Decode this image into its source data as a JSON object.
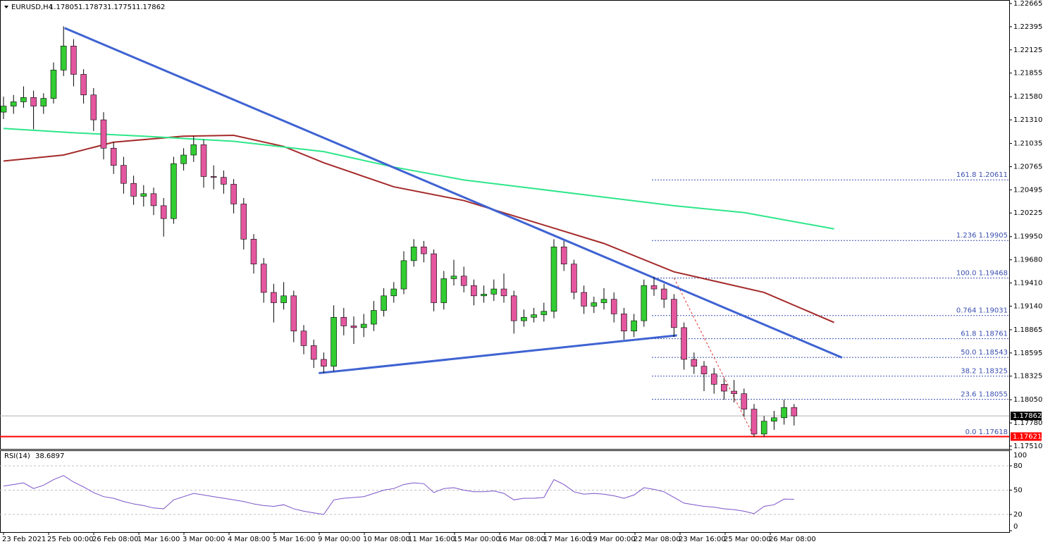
{
  "chart_data": {
    "type": "candlestick",
    "symbol": "EURUSD,H4",
    "quote": [
      1.17805,
      1.17873,
      1.17751,
      1.17862
    ],
    "bull_color": "#32cd32",
    "bear_color": "#e4579f",
    "ylim": [
      1.17477,
      1.22706
    ],
    "yticks": [
      1.22665,
      1.22395,
      1.22125,
      1.21855,
      {
        "value": 1.2158,
        "label": "1.21580"
      },
      {
        "value": 1.2131,
        "label": "1.21310"
      },
      1.21035,
      1.20765,
      1.20495,
      1.20225,
      {
        "value": 1.1995,
        "label": "1.19950"
      },
      {
        "value": 1.1968,
        "label": "1.19680"
      },
      {
        "value": 1.1941,
        "label": "1.19410"
      },
      {
        "value": 1.1914,
        "label": "1.19140"
      },
      1.18865,
      1.18595,
      1.18325,
      {
        "value": 1.1805,
        "label": "1.18050"
      },
      {
        "value": 1.1778,
        "label": "1.17780"
      },
      {
        "value": 1.1751,
        "label": "1.17510"
      }
    ],
    "xlabels": [
      "23 Feb 2021",
      "25 Feb 00:00",
      "26 Feb 08:00",
      "1 Mar 16:00",
      "3 Mar 00:00",
      "4 Mar 08:00",
      "5 Mar 16:00",
      "9 Mar 00:00",
      "10 Mar 08:00",
      "11 Mar 16:00",
      "15 Mar 00:00",
      "16 Mar 08:00",
      "17 Mar 16:00",
      "19 Mar 00:00",
      "22 Mar 08:00",
      "23 Mar 16:00",
      "25 Mar 00:00",
      "26 Mar 08:00"
    ],
    "candles": [
      [
        1.214,
        1.2158,
        1.2132,
        1.2147
      ],
      [
        1.2147,
        1.216,
        1.2138,
        1.2152
      ],
      [
        1.2152,
        1.217,
        1.2145,
        1.2157
      ],
      [
        1.2157,
        1.2165,
        1.212,
        1.2147
      ],
      [
        1.2147,
        1.2162,
        1.2138,
        1.2156
      ],
      [
        1.2156,
        1.2198,
        1.215,
        1.2189
      ],
      [
        1.2189,
        1.224,
        1.2182,
        1.2217
      ],
      [
        1.2217,
        1.2225,
        1.217,
        1.2184
      ],
      [
        1.2184,
        1.219,
        1.215,
        1.216
      ],
      [
        1.216,
        1.2168,
        1.2118,
        1.2131
      ],
      [
        1.2131,
        1.214,
        1.2085,
        1.2098
      ],
      [
        1.2098,
        1.2105,
        1.2068,
        1.2078
      ],
      [
        1.2078,
        1.2088,
        1.2045,
        1.2057
      ],
      [
        1.2057,
        1.2066,
        1.2032,
        1.2042
      ],
      [
        1.2042,
        1.2055,
        1.203,
        1.2045
      ],
      [
        1.2045,
        1.2052,
        1.202,
        1.2031
      ],
      [
        1.2031,
        1.204,
        1.1995,
        1.2016
      ],
      [
        1.2016,
        1.2088,
        1.201,
        1.208
      ],
      [
        1.208,
        1.2098,
        1.2072,
        1.209
      ],
      [
        1.209,
        1.2112,
        1.2082,
        1.2102
      ],
      [
        1.2102,
        1.2108,
        1.2052,
        1.2065
      ],
      [
        1.2065,
        1.2078,
        1.205,
        1.2064
      ],
      [
        1.2064,
        1.2072,
        1.2045,
        1.2056
      ],
      [
        1.2056,
        1.2062,
        1.2022,
        1.2033
      ],
      [
        1.2033,
        1.204,
        1.198,
        1.1992
      ],
      [
        1.1992,
        1.1998,
        1.1952,
        1.1963
      ],
      [
        1.1963,
        1.197,
        1.1918,
        1.193
      ],
      [
        1.193,
        1.194,
        1.1895,
        1.1918
      ],
      [
        1.1918,
        1.1942,
        1.191,
        1.1926
      ],
      [
        1.1926,
        1.1932,
        1.1872,
        1.1885
      ],
      [
        1.1885,
        1.1892,
        1.1858,
        1.1868
      ],
      [
        1.1868,
        1.1875,
        1.1842,
        1.1852
      ],
      [
        1.1852,
        1.186,
        1.1836,
        1.1844
      ],
      [
        1.1844,
        1.1915,
        1.1838,
        1.1901
      ],
      [
        1.1901,
        1.1912,
        1.188,
        1.1891
      ],
      [
        1.1891,
        1.1902,
        1.187,
        1.1889
      ],
      [
        1.1889,
        1.1905,
        1.1878,
        1.1893
      ],
      [
        1.1893,
        1.192,
        1.1885,
        1.1909
      ],
      [
        1.1909,
        1.1935,
        1.1902,
        1.1926
      ],
      [
        1.1926,
        1.1942,
        1.1918,
        1.1934
      ],
      [
        1.1934,
        1.1978,
        1.1928,
        1.1967
      ],
      [
        1.1967,
        1.1992,
        1.196,
        1.1983
      ],
      [
        1.1983,
        1.199,
        1.1965,
        1.1975
      ],
      [
        1.1975,
        1.198,
        1.1908,
        1.1918
      ],
      [
        1.1918,
        1.1955,
        1.191,
        1.1946
      ],
      [
        1.1946,
        1.1968,
        1.1938,
        1.1949
      ],
      [
        1.1949,
        1.196,
        1.193,
        1.1938
      ],
      [
        1.1938,
        1.1945,
        1.1915,
        1.1926
      ],
      [
        1.1926,
        1.1938,
        1.1918,
        1.1928
      ],
      [
        1.1928,
        1.1945,
        1.192,
        1.1934
      ],
      [
        1.1934,
        1.1952,
        1.1918,
        1.1926
      ],
      [
        1.1926,
        1.1932,
        1.1882,
        1.1897
      ],
      [
        1.1897,
        1.191,
        1.189,
        1.1901
      ],
      [
        1.1901,
        1.1912,
        1.1895,
        1.1904
      ],
      [
        1.1904,
        1.1918,
        1.1896,
        1.1908
      ],
      [
        1.1908,
        1.1992,
        1.19,
        1.1983
      ],
      [
        1.1983,
        1.199,
        1.1955,
        1.1963
      ],
      [
        1.1963,
        1.1968,
        1.1922,
        1.193
      ],
      [
        1.193,
        1.1938,
        1.1905,
        1.1914
      ],
      [
        1.1914,
        1.1925,
        1.1906,
        1.1918
      ],
      [
        1.1918,
        1.1935,
        1.191,
        1.1922
      ],
      [
        1.1922,
        1.193,
        1.1895,
        1.1905
      ],
      [
        1.1905,
        1.1912,
        1.1875,
        1.1885
      ],
      [
        1.1885,
        1.1905,
        1.1878,
        1.1897
      ],
      [
        1.1897,
        1.1945,
        1.189,
        1.1938
      ],
      [
        1.1938,
        1.1948,
        1.1926,
        1.1934
      ],
      [
        1.1934,
        1.194,
        1.1912,
        1.1922
      ],
      [
        1.1922,
        1.1928,
        1.1878,
        1.1889
      ],
      [
        1.1889,
        1.1895,
        1.184,
        1.1852
      ],
      [
        1.1852,
        1.186,
        1.1835,
        1.1844
      ],
      [
        1.1844,
        1.185,
        1.1815,
        1.1835
      ],
      [
        1.1835,
        1.1842,
        1.1812,
        1.1823
      ],
      [
        1.1823,
        1.183,
        1.1805,
        1.1815
      ],
      [
        1.1815,
        1.1828,
        1.1802,
        1.1812
      ],
      [
        1.1812,
        1.1818,
        1.1785,
        1.1794
      ],
      [
        1.1794,
        1.18,
        1.17618,
        1.1765
      ],
      [
        1.1765,
        1.1786,
        1.1762,
        1.178
      ],
      [
        1.178,
        1.1792,
        1.177,
        1.1784
      ],
      [
        1.1784,
        1.1805,
        1.1776,
        1.1796
      ],
      [
        1.1796,
        1.18,
        1.1775,
        1.17862
      ]
    ],
    "ma": [
      {
        "color": "#a52a2a",
        "x": [
          0,
          6,
          11,
          18,
          23,
          28,
          32,
          39,
          46,
          53,
          60,
          67,
          76,
          83
        ],
        "values": [
          1.2083,
          1.209,
          1.2105,
          1.2112,
          1.2113,
          1.21,
          1.2081,
          1.2053,
          1.2037,
          1.2012,
          1.1987,
          1.1954,
          1.193,
          1.1895
        ]
      },
      {
        "color": "#2ee68a",
        "x": [
          0,
          7,
          14,
          23,
          32,
          39,
          46,
          53,
          60,
          67,
          74,
          83
        ],
        "values": [
          1.2121,
          1.2116,
          1.2112,
          1.2106,
          1.2094,
          1.2076,
          1.2061,
          1.2051,
          1.2041,
          1.2031,
          1.2023,
          1.2004
        ]
      }
    ],
    "trendlines": [
      {
        "color": "#3f63d2",
        "x": [
          6.1,
          83.8
        ],
        "values": [
          1.2238,
          1.1854
        ]
      },
      {
        "color": "#3f63d2",
        "x": [
          31.5,
          67.3
        ],
        "values": [
          1.1836,
          1.188
        ]
      }
    ],
    "hlines": [
      {
        "value": 1.17621,
        "color": "#ff0000"
      },
      {
        "value": 1.17862,
        "color": "#b0b0b0"
      }
    ],
    "fib": [
      {
        "value": 1.20611,
        "label": "161.8 1.20611"
      },
      {
        "value": 1.19905,
        "label": "1.236 1.19905"
      },
      {
        "value": 1.19468,
        "label": "100.0 1.19468"
      },
      {
        "value": 1.19031,
        "label": "0.764 1.19031"
      },
      {
        "value": 1.18761,
        "label": "61.8 1.18761"
      },
      {
        "value": 1.18543,
        "label": "50.0 1.18543"
      },
      {
        "value": 1.18325,
        "label": "38.2 1.18325"
      },
      {
        "value": 1.18055,
        "label": "23.6 1.18055"
      },
      {
        "value": 1.17618,
        "label": "0.0 1.17618"
      }
    ],
    "fib_color": "#3a4fb0",
    "rsi": {
      "name": "RSI(14)",
      "color": "#7b52c8",
      "ylim": [
        0,
        100
      ],
      "yticks": [
        0,
        20,
        50,
        80,
        100
      ],
      "levels": [
        20,
        50,
        80
      ],
      "values": [
        55,
        57,
        59,
        52,
        56,
        63,
        68,
        60,
        54,
        47,
        42,
        40,
        36,
        33,
        31,
        28,
        27,
        38,
        42,
        46,
        44,
        42,
        40,
        38,
        36,
        33,
        31,
        30,
        32,
        27,
        24,
        22,
        20,
        38,
        40,
        41,
        42,
        46,
        50,
        52,
        57,
        59,
        58,
        47,
        52,
        53,
        50,
        48,
        48,
        49,
        46,
        38,
        40,
        40,
        41,
        63,
        57,
        48,
        45,
        46,
        45,
        43,
        40,
        44,
        53,
        51,
        48,
        41,
        34,
        32,
        30,
        29,
        27,
        26,
        24,
        21,
        30,
        32,
        39,
        38.6897
      ]
    }
  }
}
